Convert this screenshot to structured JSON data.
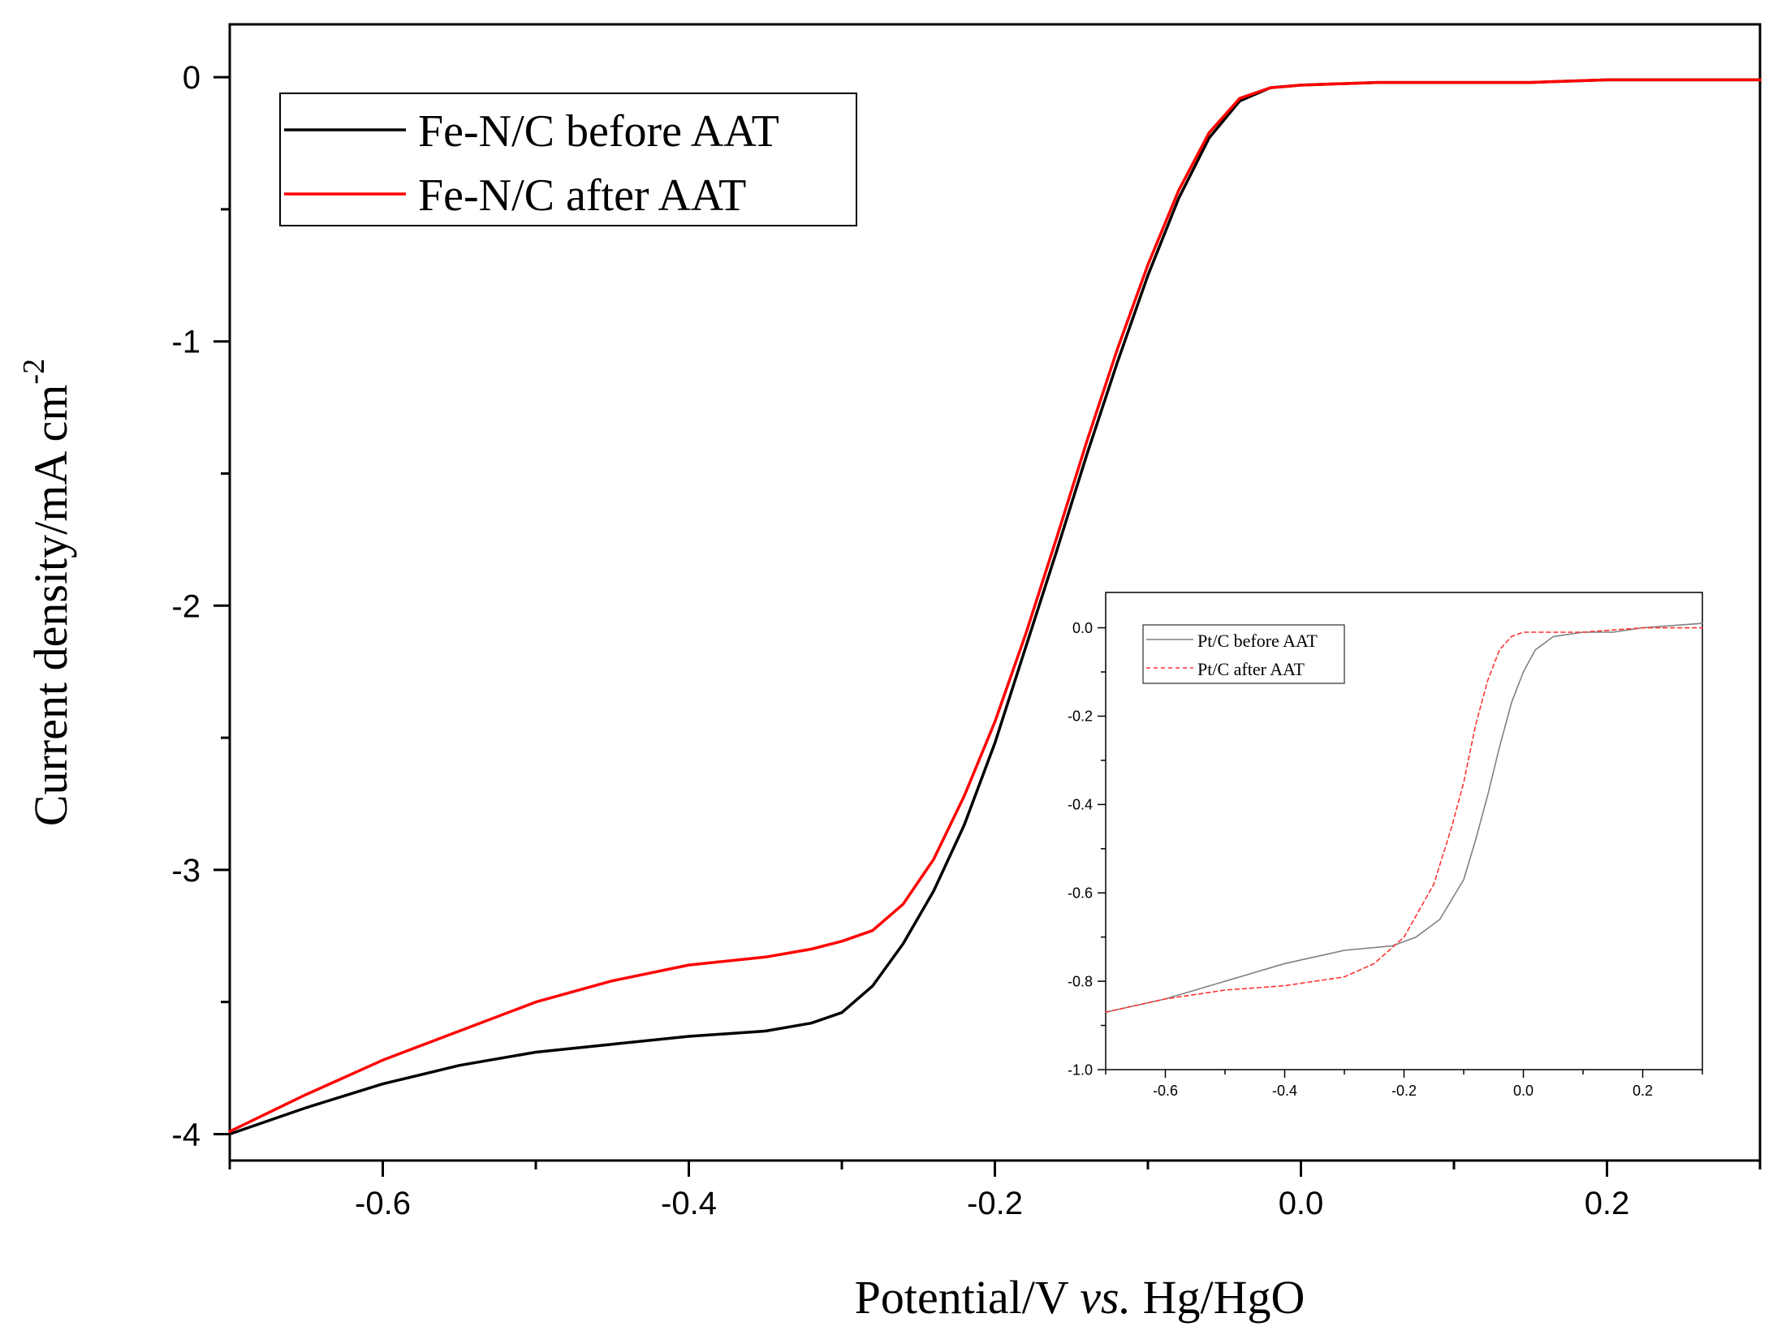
{
  "chart_data": [
    {
      "type": "line",
      "xlabel": "Potential/V",
      "xlabel_italic": "vs.",
      "xlabel_suffix": "Hg/HgO",
      "ylabel": "Current density/mA cm",
      "ylabel_sup": "-2",
      "xlim": [
        -0.7,
        0.3
      ],
      "ylim": [
        -4.1,
        0.2
      ],
      "xticks": [
        -0.6,
        -0.4,
        -0.2,
        0.0,
        0.2
      ],
      "xtick_labels": [
        "-0.6",
        "-0.4",
        "-0.2",
        "0.0",
        "0.2"
      ],
      "yticks": [
        0,
        -1,
        -2,
        -3,
        -4
      ],
      "ytick_labels": [
        "0",
        "-1",
        "-2",
        "-3",
        "-4"
      ],
      "grid": false,
      "legend_position": "top-left",
      "series": [
        {
          "name": "Fe-N/C before AAT",
          "color": "#000000",
          "dash": "solid",
          "x": [
            -0.7,
            -0.65,
            -0.6,
            -0.55,
            -0.5,
            -0.45,
            -0.4,
            -0.35,
            -0.32,
            -0.3,
            -0.28,
            -0.26,
            -0.24,
            -0.22,
            -0.2,
            -0.18,
            -0.16,
            -0.14,
            -0.12,
            -0.1,
            -0.08,
            -0.06,
            -0.04,
            -0.02,
            0.0,
            0.05,
            0.1,
            0.15,
            0.2,
            0.25,
            0.3
          ],
          "y": [
            -4.0,
            -3.9,
            -3.81,
            -3.74,
            -3.69,
            -3.66,
            -3.63,
            -3.61,
            -3.58,
            -3.54,
            -3.44,
            -3.28,
            -3.08,
            -2.83,
            -2.52,
            -2.16,
            -1.8,
            -1.43,
            -1.08,
            -0.75,
            -0.46,
            -0.23,
            -0.09,
            -0.04,
            -0.03,
            -0.02,
            -0.02,
            -0.02,
            -0.01,
            -0.01,
            -0.01
          ]
        },
        {
          "name": "Fe-N/C after AAT",
          "color": "#ff0000",
          "dash": "solid",
          "x": [
            -0.7,
            -0.65,
            -0.6,
            -0.55,
            -0.5,
            -0.45,
            -0.4,
            -0.35,
            -0.32,
            -0.3,
            -0.28,
            -0.26,
            -0.24,
            -0.22,
            -0.2,
            -0.18,
            -0.16,
            -0.14,
            -0.12,
            -0.1,
            -0.08,
            -0.06,
            -0.04,
            -0.02,
            0.0,
            0.05,
            0.1,
            0.15,
            0.2,
            0.25,
            0.3
          ],
          "y": [
            -3.99,
            -3.85,
            -3.72,
            -3.61,
            -3.5,
            -3.42,
            -3.36,
            -3.33,
            -3.3,
            -3.27,
            -3.23,
            -3.13,
            -2.96,
            -2.72,
            -2.44,
            -2.11,
            -1.75,
            -1.38,
            -1.03,
            -0.71,
            -0.43,
            -0.21,
            -0.08,
            -0.04,
            -0.03,
            -0.02,
            -0.02,
            -0.02,
            -0.01,
            -0.01,
            -0.01
          ]
        }
      ]
    },
    {
      "type": "line",
      "role": "inset",
      "xlim": [
        -0.7,
        0.3
      ],
      "ylim": [
        -1.0,
        0.08
      ],
      "xticks": [
        -0.6,
        -0.4,
        -0.2,
        0.0,
        0.2
      ],
      "xtick_labels": [
        "-0.6",
        "-0.4",
        "-0.2",
        "0.0",
        "0.2"
      ],
      "yticks": [
        0.0,
        -0.2,
        -0.4,
        -0.6,
        -0.8,
        -1.0
      ],
      "ytick_labels": [
        "0.0",
        "-0.2",
        "-0.4",
        "-0.6",
        "-0.8",
        "-1.0"
      ],
      "grid": false,
      "legend_position": "top-left",
      "series": [
        {
          "name": "Pt/C before AAT",
          "color": "#808080",
          "dash": "solid",
          "x": [
            -0.7,
            -0.6,
            -0.5,
            -0.4,
            -0.3,
            -0.22,
            -0.18,
            -0.14,
            -0.1,
            -0.08,
            -0.06,
            -0.04,
            -0.02,
            0.0,
            0.02,
            0.05,
            0.1,
            0.15,
            0.2,
            0.25,
            0.3
          ],
          "y": [
            -0.87,
            -0.84,
            -0.8,
            -0.76,
            -0.73,
            -0.72,
            -0.7,
            -0.66,
            -0.57,
            -0.48,
            -0.38,
            -0.27,
            -0.17,
            -0.1,
            -0.05,
            -0.02,
            -0.01,
            -0.01,
            0.0,
            0.005,
            0.01
          ]
        },
        {
          "name": "Pt/C after AAT",
          "color": "#ff3333",
          "dash": "dashed",
          "x": [
            -0.7,
            -0.6,
            -0.5,
            -0.4,
            -0.3,
            -0.25,
            -0.2,
            -0.15,
            -0.12,
            -0.1,
            -0.08,
            -0.06,
            -0.04,
            -0.02,
            0.0,
            0.02,
            0.05,
            0.1,
            0.15,
            0.2,
            0.25,
            0.3
          ],
          "y": [
            -0.87,
            -0.84,
            -0.82,
            -0.81,
            -0.79,
            -0.76,
            -0.7,
            -0.58,
            -0.45,
            -0.35,
            -0.22,
            -0.12,
            -0.05,
            -0.02,
            -0.01,
            -0.01,
            -0.01,
            -0.01,
            -0.005,
            0.0,
            0.0,
            0.0
          ]
        }
      ]
    }
  ]
}
